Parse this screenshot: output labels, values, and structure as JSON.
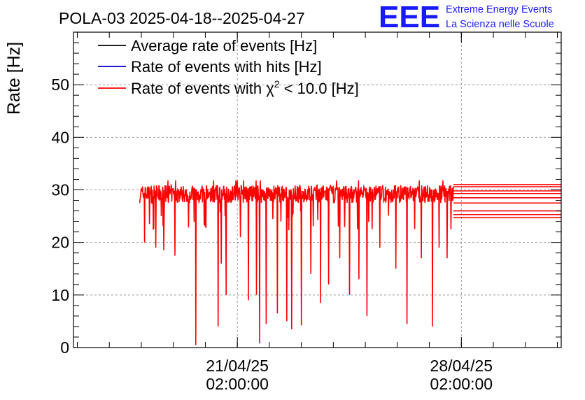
{
  "chart_data": {
    "type": "line",
    "title": "POLA-03 2025-04-18--2025-04-27",
    "xlabel": "",
    "ylabel": "Rate [Hz]",
    "ylim": [
      0,
      60
    ],
    "y_ticks": [
      0,
      10,
      20,
      30,
      40,
      50
    ],
    "x_range_days": [
      -5.12,
      10.12
    ],
    "x_ticks": [
      {
        "day": 0,
        "date": "21/04/25",
        "time": "02:00:00"
      },
      {
        "day": 7,
        "date": "28/04/25",
        "time": "02:00:00"
      }
    ],
    "grid": true,
    "legend_position": "top-left",
    "legend": [
      {
        "label": "Average rate of events [Hz]",
        "color": "#000000"
      },
      {
        "label": "Rate of events with hits [Hz]",
        "color": "#0000cc"
      },
      {
        "label_prefix": "Rate of events with ",
        "chi_symbol": "χ",
        "superscript": "2",
        "label_suffix": " < 10.0 [Hz]",
        "color": "#ff0000"
      }
    ],
    "series": [
      {
        "name": "Rate of events with chi2 < 10.0 [Hz]",
        "color": "#ff0000",
        "x_start_day": -3.05,
        "x_end_day": 6.75,
        "baseline": 29.2,
        "noise": 1.7,
        "dips": [
          {
            "day": -2.9,
            "value": 20.0
          },
          {
            "day": -2.75,
            "value": 23.5
          },
          {
            "day": -2.55,
            "value": 19.0
          },
          {
            "day": -2.3,
            "value": 18.5
          },
          {
            "day": -1.95,
            "value": 17.5
          },
          {
            "day": -1.3,
            "value": 0.5
          },
          {
            "day": -1.0,
            "value": 23.0
          },
          {
            "day": -0.6,
            "value": 4.0
          },
          {
            "day": -0.5,
            "value": 16.0
          },
          {
            "day": -0.35,
            "value": 10.0
          },
          {
            "day": 0.1,
            "value": 21.0
          },
          {
            "day": 0.35,
            "value": 9.0
          },
          {
            "day": 0.6,
            "value": 10.0
          },
          {
            "day": 0.7,
            "value": 0.8
          },
          {
            "day": 0.9,
            "value": 4.5
          },
          {
            "day": 1.25,
            "value": 6.5
          },
          {
            "day": 1.55,
            "value": 5.0
          },
          {
            "day": 1.7,
            "value": 3.5
          },
          {
            "day": 2.0,
            "value": 4.2
          },
          {
            "day": 2.3,
            "value": 14.0
          },
          {
            "day": 2.6,
            "value": 8.5
          },
          {
            "day": 2.85,
            "value": 12.0
          },
          {
            "day": 3.2,
            "value": 17.0
          },
          {
            "day": 3.5,
            "value": 10.0
          },
          {
            "day": 3.8,
            "value": 13.0
          },
          {
            "day": 4.05,
            "value": 6.0
          },
          {
            "day": 4.45,
            "value": 19.0
          },
          {
            "day": 4.95,
            "value": 15.0
          },
          {
            "day": 5.3,
            "value": 4.5
          },
          {
            "day": 5.75,
            "value": 17.0
          },
          {
            "day": 6.1,
            "value": 4.0
          },
          {
            "day": 6.3,
            "value": 19.0
          },
          {
            "day": 6.55,
            "value": 17.0
          }
        ],
        "tail_lines": [
          31.0,
          30.6,
          29.8,
          29.3,
          28.5,
          27.5,
          26.0,
          25.3,
          24.7
        ]
      }
    ]
  },
  "logo": {
    "text": "EEE",
    "line1": "Extreme Energy Events",
    "line2": "La Scienza nelle Scuole",
    "color": "#1a1aff"
  }
}
